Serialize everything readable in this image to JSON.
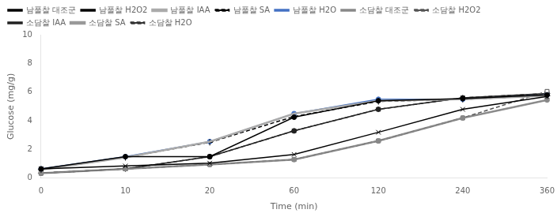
{
  "chart_data": {
    "type": "line",
    "categories": [
      "0",
      "10",
      "20",
      "60",
      "120",
      "240",
      "360"
    ],
    "xlabel": "Time (min)",
    "ylabel": "Glucose (mg/g)",
    "ylim": [
      0,
      10
    ],
    "yticks": [
      0,
      2,
      4,
      6,
      8,
      10
    ],
    "grid": false,
    "legend": "upper left",
    "series": [
      {
        "name": "남풀찰 대조군",
        "color": "#000000",
        "marker": "x",
        "line_style": "solid",
        "values": [
          0.65,
          0.85,
          1.05,
          1.65,
          3.2,
          4.8,
          5.7
        ]
      },
      {
        "name": "남풀찰 H2O2",
        "color": "#000000",
        "marker": "circle",
        "line_style": "solid",
        "values": [
          0.65,
          1.5,
          1.5,
          4.25,
          5.4,
          5.55,
          5.8
        ]
      },
      {
        "name": "남풀찰 IAA",
        "color": "#aaaaaa",
        "marker": "none",
        "line_style": "solid",
        "values": [
          0.6,
          1.45,
          2.55,
          4.5,
          5.4,
          5.5,
          5.75
        ]
      },
      {
        "name": "남풀찰 SA",
        "color": "#000000",
        "marker": "plus",
        "line_style": "dashed",
        "values": [
          0.6,
          1.45,
          2.5,
          4.3,
          5.35,
          5.5,
          5.75
        ]
      },
      {
        "name": "남풀찰 H2O",
        "color": "#4472c4",
        "marker": "circle",
        "line_style": "solid",
        "values": [
          0.65,
          1.5,
          2.55,
          4.5,
          5.5,
          5.5,
          5.8
        ]
      },
      {
        "name": "소담찰 대조군",
        "color": "#888888",
        "marker": "circle",
        "line_style": "solid",
        "values": [
          0.35,
          0.65,
          0.95,
          1.3,
          2.6,
          4.2,
          5.45
        ]
      },
      {
        "name": "소담찰 H2O2",
        "color": "#555555",
        "marker": "open-square",
        "line_style": "dashed",
        "values": [
          0.35,
          0.65,
          0.95,
          1.3,
          2.6,
          4.2,
          6.05
        ]
      },
      {
        "name": "소담찰 IAA",
        "color": "#222222",
        "marker": "square",
        "line_style": "solid",
        "values": [
          0.35,
          0.65,
          1.5,
          3.3,
          4.8,
          5.6,
          5.9
        ]
      },
      {
        "name": "소담찰 SA",
        "color": "#999999",
        "marker": "none",
        "line_style": "solid",
        "values": [
          0.35,
          0.65,
          0.95,
          1.3,
          2.6,
          4.2,
          5.45
        ]
      },
      {
        "name": "소담찰 H2O",
        "color": "#333333",
        "marker": "diamond",
        "line_style": "dashed",
        "values": [
          0.35,
          0.65,
          1.5,
          3.3,
          4.8,
          5.6,
          5.9
        ]
      }
    ]
  }
}
